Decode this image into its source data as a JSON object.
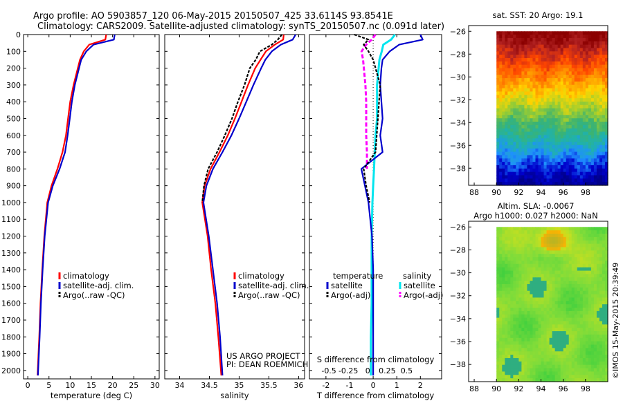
{
  "header": {
    "line1": "Argo profile: AO 5903857_120 06-May-2015 20150507_425 33.6114S 93.8541E",
    "line2": "Climatology: CARS2009. Satellite-adjusted climatology: synTS_20150507.nc (0.091d later)"
  },
  "credits": {
    "project": "US ARGO PROJECT",
    "pi": "PI: DEAN ROEMMICH",
    "imos": "©IMOS 15-May-2015 20:39:49"
  },
  "colors": {
    "climatology": "#ff0000",
    "satellite": "#0000cc",
    "argo": "#000000",
    "sal_satellite": "#00e5ee",
    "sal_argo": "#ff00ff"
  },
  "chart_data": [
    {
      "type": "line",
      "id": "temperature",
      "xlabel": "temperature (deg C)",
      "xlim": [
        -1,
        31
      ],
      "xticks": [
        0,
        5,
        10,
        15,
        20,
        25,
        30
      ],
      "ylim": [
        2050,
        0
      ],
      "yticks": [
        0,
        100,
        200,
        300,
        400,
        500,
        600,
        700,
        800,
        900,
        1000,
        1100,
        1200,
        1300,
        1400,
        1500,
        1600,
        1700,
        1800,
        1900,
        2000
      ],
      "depth": [
        0,
        30,
        60,
        100,
        150,
        200,
        300,
        400,
        500,
        600,
        700,
        800,
        900,
        1000,
        1200,
        1400,
        1600,
        1800,
        2030
      ],
      "legend": [
        "climatology",
        "satellite-adj. clim.",
        "Argo(..raw -QC)"
      ],
      "series": [
        {
          "name": "climatology",
          "values": [
            18.5,
            18.3,
            14.5,
            13.2,
            12.3,
            11.8,
            10.8,
            10.0,
            9.5,
            9.0,
            8.2,
            7.0,
            5.6,
            4.6,
            3.9,
            3.4,
            3.0,
            2.7,
            2.3
          ]
        },
        {
          "name": "satellite-adj. clim.",
          "values": [
            20.5,
            20.3,
            15.5,
            13.8,
            12.6,
            12.1,
            11.1,
            10.4,
            9.9,
            9.4,
            8.8,
            7.5,
            5.9,
            4.8,
            4.0,
            3.5,
            3.1,
            2.8,
            2.4
          ]
        }
      ]
    },
    {
      "type": "line",
      "id": "salinity",
      "xlabel": "salinity",
      "xlim": [
        33.75,
        36.1
      ],
      "xticks": [
        34,
        34.5,
        35,
        35.5,
        36
      ],
      "ylim": [
        2050,
        0
      ],
      "depth": [
        0,
        30,
        60,
        100,
        150,
        200,
        300,
        400,
        500,
        600,
        700,
        800,
        900,
        1000,
        1200,
        1400,
        1600,
        1800,
        2030
      ],
      "legend": [
        "climatology",
        "satellite-adj. clim.",
        "Argo(..raw -QC)"
      ],
      "series": [
        {
          "name": "climatology",
          "values": [
            35.75,
            35.74,
            35.6,
            35.45,
            35.36,
            35.27,
            35.15,
            35.04,
            34.93,
            34.81,
            34.67,
            34.52,
            34.42,
            34.38,
            34.47,
            34.53,
            34.6,
            34.65,
            34.7
          ]
        },
        {
          "name": "satellite-adj. clim.",
          "values": [
            35.95,
            35.9,
            35.7,
            35.55,
            35.44,
            35.37,
            35.24,
            35.12,
            35.0,
            34.87,
            34.72,
            34.56,
            34.45,
            34.4,
            34.49,
            34.56,
            34.63,
            34.68,
            34.72
          ]
        },
        {
          "name": "Argo(..raw -QC)",
          "values": [
            35.72,
            35.65,
            35.55,
            35.35,
            35.28,
            35.18,
            35.09,
            34.98,
            34.88,
            34.76,
            34.63,
            34.48,
            34.41,
            34.38
          ]
        }
      ]
    },
    {
      "type": "line",
      "id": "difference",
      "xlabel": "T difference from climatology",
      "xlabel_top": "S difference from climatology",
      "xlim": [
        -2.7,
        2.9
      ],
      "xticks": [
        -2,
        -1,
        0,
        1,
        2
      ],
      "sticks": [
        -0.5,
        -0.25,
        0,
        0.25,
        0.5
      ],
      "sticklabels": [
        "-0.5",
        "-0.25",
        "0",
        "0.25",
        "0.5"
      ],
      "ylim": [
        2050,
        0
      ],
      "depth": [
        0,
        30,
        60,
        100,
        150,
        200,
        300,
        400,
        500,
        600,
        700,
        800,
        900,
        1000,
        1200,
        1400,
        1600,
        1800,
        2030
      ],
      "legend": [
        "temperature",
        "satellite",
        "Argo(-adj)",
        "salinity",
        "satellite",
        "Argo(-adj)"
      ],
      "series": [
        {
          "name": "satellite",
          "group": "temperature",
          "values": [
            2.0,
            2.1,
            1.1,
            0.7,
            0.4,
            0.35,
            0.3,
            0.35,
            0.4,
            0.3,
            0.4,
            -0.5,
            -0.35,
            -0.2,
            -0.05,
            0.0,
            0.0,
            0.0,
            0.0
          ]
        },
        {
          "name": "Argo(-adj)",
          "group": "temperature",
          "values": [
            -0.8,
            -0.2,
            -0.4,
            -0.2,
            0.0,
            0.1,
            0.3,
            0.25,
            0.2,
            0.15,
            0.1,
            -0.4,
            -0.3,
            -0.15
          ]
        },
        {
          "name": "satellite",
          "group": "salinity",
          "values": [
            0.35,
            0.3,
            0.2,
            0.18,
            0.15,
            0.14,
            0.12,
            0.12,
            0.12,
            0.1,
            0.09,
            0.08,
            0.07,
            0.06,
            0.05,
            0.05,
            0.05,
            0.04,
            0.04
          ]
        },
        {
          "name": "Argo(-adj)",
          "group": "salinity",
          "values": [
            0.1,
            0.05,
            -0.02,
            -0.08,
            -0.06,
            -0.05,
            -0.03,
            -0.02,
            -0.02,
            -0.02,
            -0.01,
            -0.01
          ]
        }
      ]
    },
    {
      "type": "heatmap",
      "id": "sst-map",
      "title": "sat. SST: 20 Argo: 19.1",
      "xlim": [
        87.5,
        100
      ],
      "xticks": [
        88,
        90,
        92,
        94,
        96,
        98
      ],
      "ylim": [
        -39.5,
        -25.5
      ],
      "yticks": [
        -26,
        -28,
        -30,
        -32,
        -34,
        -36,
        -38
      ],
      "ytick_prefix": "−",
      "data_xlim": [
        90,
        100
      ],
      "data_ylim": [
        -39.5,
        -26
      ],
      "colormap": [
        "#8b0000",
        "#b22222",
        "#ff4500",
        "#ff8c00",
        "#ffd700",
        "#9acd32",
        "#3cb371",
        "#20b2aa",
        "#1e90ff",
        "#0000cd",
        "#00008b"
      ]
    },
    {
      "type": "heatmap",
      "id": "sla-map",
      "title": "Altim. SLA: -0.0067",
      "subtitle": "Argo h1000: 0.027 h2000: NaN",
      "xlim": [
        87.5,
        100
      ],
      "xticks": [
        88,
        90,
        92,
        94,
        96,
        98
      ],
      "ylim": [
        -39.5,
        -25.5
      ],
      "yticks": [
        -26,
        -28,
        -30,
        -32,
        -34,
        -36,
        -38
      ],
      "data_xlim": [
        90,
        100
      ],
      "data_ylim": [
        -39.5,
        -26
      ],
      "colormap": [
        "#00c000",
        "#2ecc40",
        "#7fdc3a",
        "#c8e020",
        "#ffb300",
        "#27b76a",
        "#3aa0a0"
      ]
    }
  ]
}
